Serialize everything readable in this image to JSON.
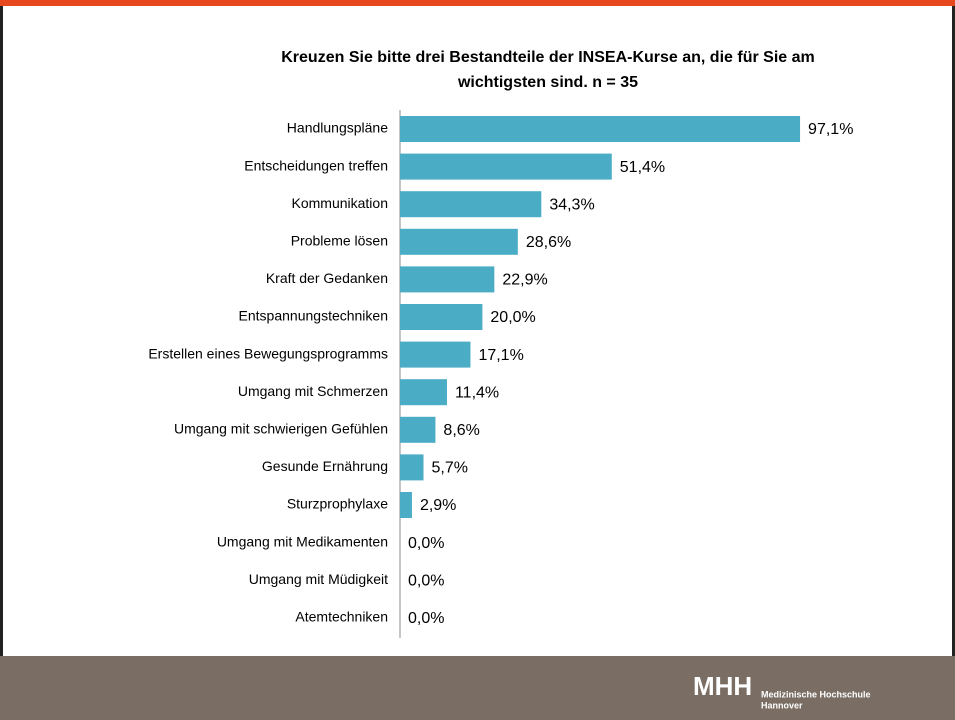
{
  "chart_data": {
    "type": "barh",
    "title": [
      "Kreuzen Sie bitte drei Bestandteile der INSEA-Kurse an, die für Sie am",
      "wichtigsten sind. n = 35"
    ],
    "categories": [
      "Handlungspläne",
      "Entscheidungen treffen",
      "Kommunikation",
      "Probleme lösen",
      "Kraft der Gedanken",
      "Entspannungstechniken",
      "Erstellen eines Bewegungsprogramms",
      "Umgang mit Schmerzen",
      "Umgang mit schwierigen Gefühlen",
      "Gesunde Ernährung",
      "Sturzprophylaxe",
      "Umgang mit Medikamenten",
      "Umgang mit Müdigkeit",
      "Atemtechniken"
    ],
    "values": [
      97.1,
      51.4,
      34.3,
      28.6,
      22.9,
      20.0,
      17.1,
      11.4,
      8.6,
      5.7,
      2.9,
      0.0,
      0.0,
      0.0
    ],
    "value_labels": [
      "97,1%",
      "51,4%",
      "34,3%",
      "28,6%",
      "22,9%",
      "20,0%",
      "17,1%",
      "11,4%",
      "8,6%",
      "5,7%",
      "2,9%",
      "0,0%",
      "0,0%",
      "0,0%"
    ],
    "color": "#4bacc6",
    "xlim": [
      0,
      100
    ]
  },
  "footer": {
    "logo": "MHH",
    "institution": [
      "Medizinische Hochschule",
      "Hannover"
    ]
  }
}
